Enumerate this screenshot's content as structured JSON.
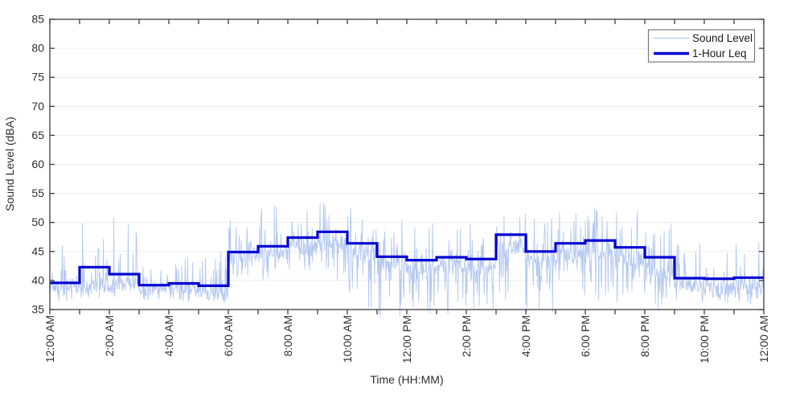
{
  "figure": {
    "background": "#ffffff",
    "axis_color": "#3d3d3d",
    "grid_color": "#ececec",
    "text_color": "#2e2e2e",
    "legend_border_color": "#777777"
  },
  "chart_data": {
    "type": "line",
    "title": "",
    "xlabel": "Time (HH:MM)",
    "ylabel": "Sound Level (dBA)",
    "ylim": [
      35,
      85
    ],
    "xlim_hours": [
      0,
      24
    ],
    "grid": "horizontal-only",
    "y_ticks": [
      35,
      40,
      45,
      50,
      55,
      60,
      65,
      70,
      75,
      80,
      85
    ],
    "x_tick_every_hours": 1,
    "x_label_every_hours": 2,
    "x_tick_labels": [
      "12:00 AM",
      "2:00 AM",
      "4:00 AM",
      "6:00 AM",
      "8:00 AM",
      "10:00 AM",
      "12:00 PM",
      "2:00 PM",
      "4:00 PM",
      "6:00 PM",
      "8:00 PM",
      "10:00 PM",
      "12:00 AM"
    ],
    "legend": {
      "position": "top-right",
      "entries": [
        {
          "label": "Sound Level",
          "color": "#b4c8f1",
          "line": "thin"
        },
        {
          "label": "1-Hour Leq",
          "color": "#0000d2",
          "line": "thick"
        }
      ]
    },
    "series": [
      {
        "name": "Sound Level",
        "type": "noisy-line",
        "color": "#b4c8f1",
        "points_per_hour": 60,
        "seed": 42,
        "hourly_envelope_base_spike_floor_density": [
          [
            38.8,
            46.5,
            36.5,
            0.45
          ],
          [
            39.2,
            50.8,
            36.8,
            0.5
          ],
          [
            39.3,
            51.0,
            37.0,
            0.45
          ],
          [
            38.6,
            44.5,
            36.6,
            0.4
          ],
          [
            38.6,
            44.5,
            36.0,
            0.45
          ],
          [
            37.8,
            45.0,
            35.8,
            0.4
          ],
          [
            44.2,
            50.5,
            40.0,
            0.6
          ],
          [
            44.8,
            53.0,
            39.5,
            0.65
          ],
          [
            45.6,
            55.2,
            40.0,
            0.7
          ],
          [
            46.4,
            53.5,
            40.0,
            0.75
          ],
          [
            44.6,
            52.5,
            35.0,
            0.8
          ],
          [
            42.6,
            50.5,
            33.5,
            0.9
          ],
          [
            42.0,
            50.0,
            33.5,
            0.9
          ],
          [
            42.6,
            50.5,
            34.0,
            0.85
          ],
          [
            42.2,
            50.5,
            33.8,
            0.9
          ],
          [
            45.8,
            52.8,
            36.5,
            0.8
          ],
          [
            43.2,
            51.5,
            34.0,
            0.9
          ],
          [
            44.2,
            52.5,
            36.0,
            0.85
          ],
          [
            44.6,
            53.2,
            36.5,
            0.85
          ],
          [
            43.6,
            52.0,
            36.0,
            0.85
          ],
          [
            41.6,
            50.5,
            34.5,
            0.7
          ],
          [
            39.2,
            46.5,
            35.8,
            0.6
          ],
          [
            39.0,
            47.5,
            36.0,
            0.6
          ],
          [
            39.4,
            48.5,
            36.0,
            0.65
          ]
        ]
      },
      {
        "name": "1-Hour Leq",
        "type": "step",
        "color": "#0000d2",
        "hourly_values": [
          39.6,
          42.3,
          41.1,
          39.2,
          39.5,
          39.1,
          44.9,
          45.9,
          47.4,
          48.4,
          46.4,
          44.1,
          43.5,
          44.0,
          43.7,
          47.9,
          45.0,
          46.4,
          46.9,
          45.7,
          44.0,
          40.4,
          40.3,
          40.5
        ]
      }
    ]
  }
}
